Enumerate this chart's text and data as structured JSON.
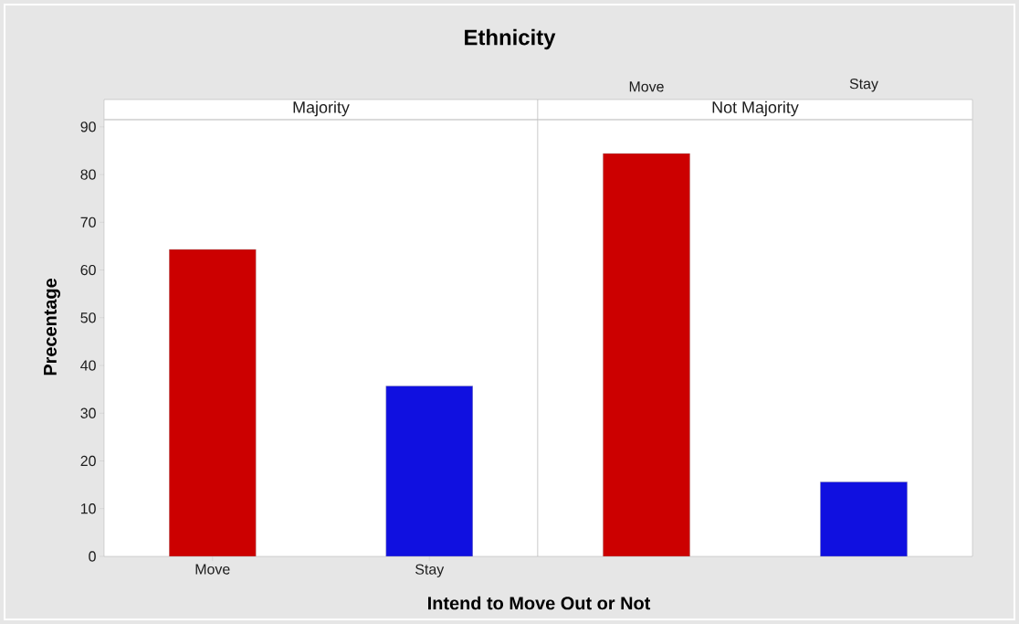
{
  "chart_data": [
    {
      "type": "bar",
      "title": "Ethnicity",
      "subtitle": "Majority",
      "xlabel": "Intend to Move Out or Not",
      "ylabel": "Precentage",
      "categories": [
        "Move",
        "Stay"
      ],
      "values": [
        64.3,
        35.7
      ],
      "colors": [
        "#cc0000",
        "#1010e0"
      ],
      "ylim": [
        0,
        91.5
      ],
      "yticks": [
        0,
        10,
        20,
        30,
        40,
        50,
        60,
        70,
        80,
        90
      ]
    },
    {
      "type": "bar",
      "subtitle": "Not Majority",
      "categories": [
        "Move",
        "Stay"
      ],
      "values": [
        84.4,
        15.6
      ],
      "colors": [
        "#cc0000",
        "#1010e0"
      ],
      "ylim": [
        0,
        91.5
      ],
      "yticks": [
        0,
        10,
        20,
        30,
        40,
        50,
        60,
        70,
        80,
        90
      ],
      "tick_labels": "x"
    }
  ]
}
